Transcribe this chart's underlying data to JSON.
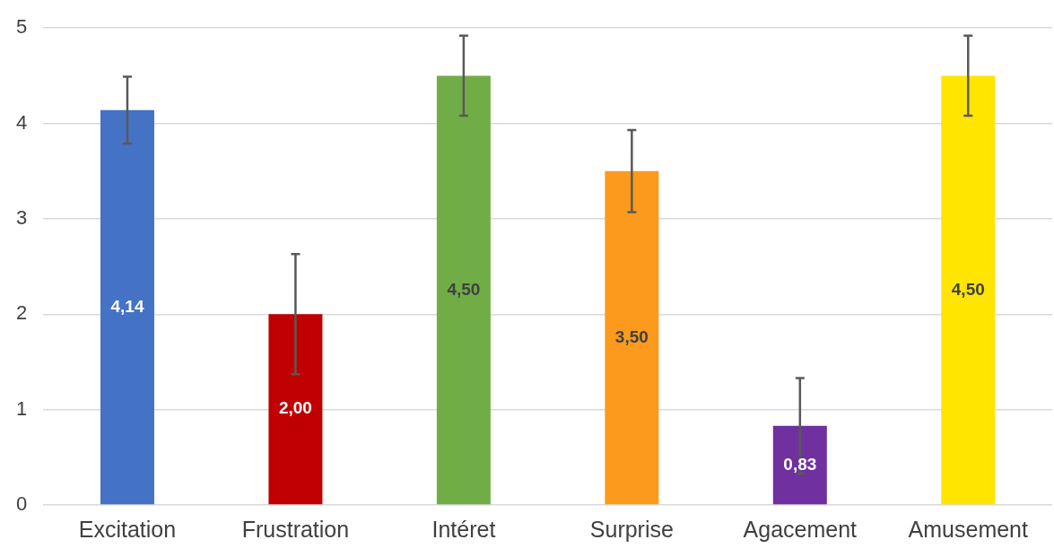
{
  "chart_data": {
    "type": "bar",
    "categories": [
      "Excitation",
      "Frustration",
      "Intéret",
      "Surprise",
      "Agacement",
      "Amusement"
    ],
    "values": [
      4.14,
      2.0,
      4.5,
      3.5,
      0.83,
      4.5
    ],
    "colors": [
      "#4472c4",
      "#c00000",
      "#70ad47",
      "#fb9a1c",
      "#7030a0",
      "#ffe500"
    ],
    "errors": [
      0.35,
      0.63,
      0.42,
      0.43,
      0.5,
      0.42
    ],
    "value_labels": [
      "4,14",
      "2,00",
      "4,50",
      "3,50",
      "0,83",
      "4,50"
    ],
    "ylim": [
      0,
      5
    ],
    "yticks": [
      0,
      1,
      2,
      3,
      4,
      5
    ],
    "grid": "y",
    "legend": false
  }
}
